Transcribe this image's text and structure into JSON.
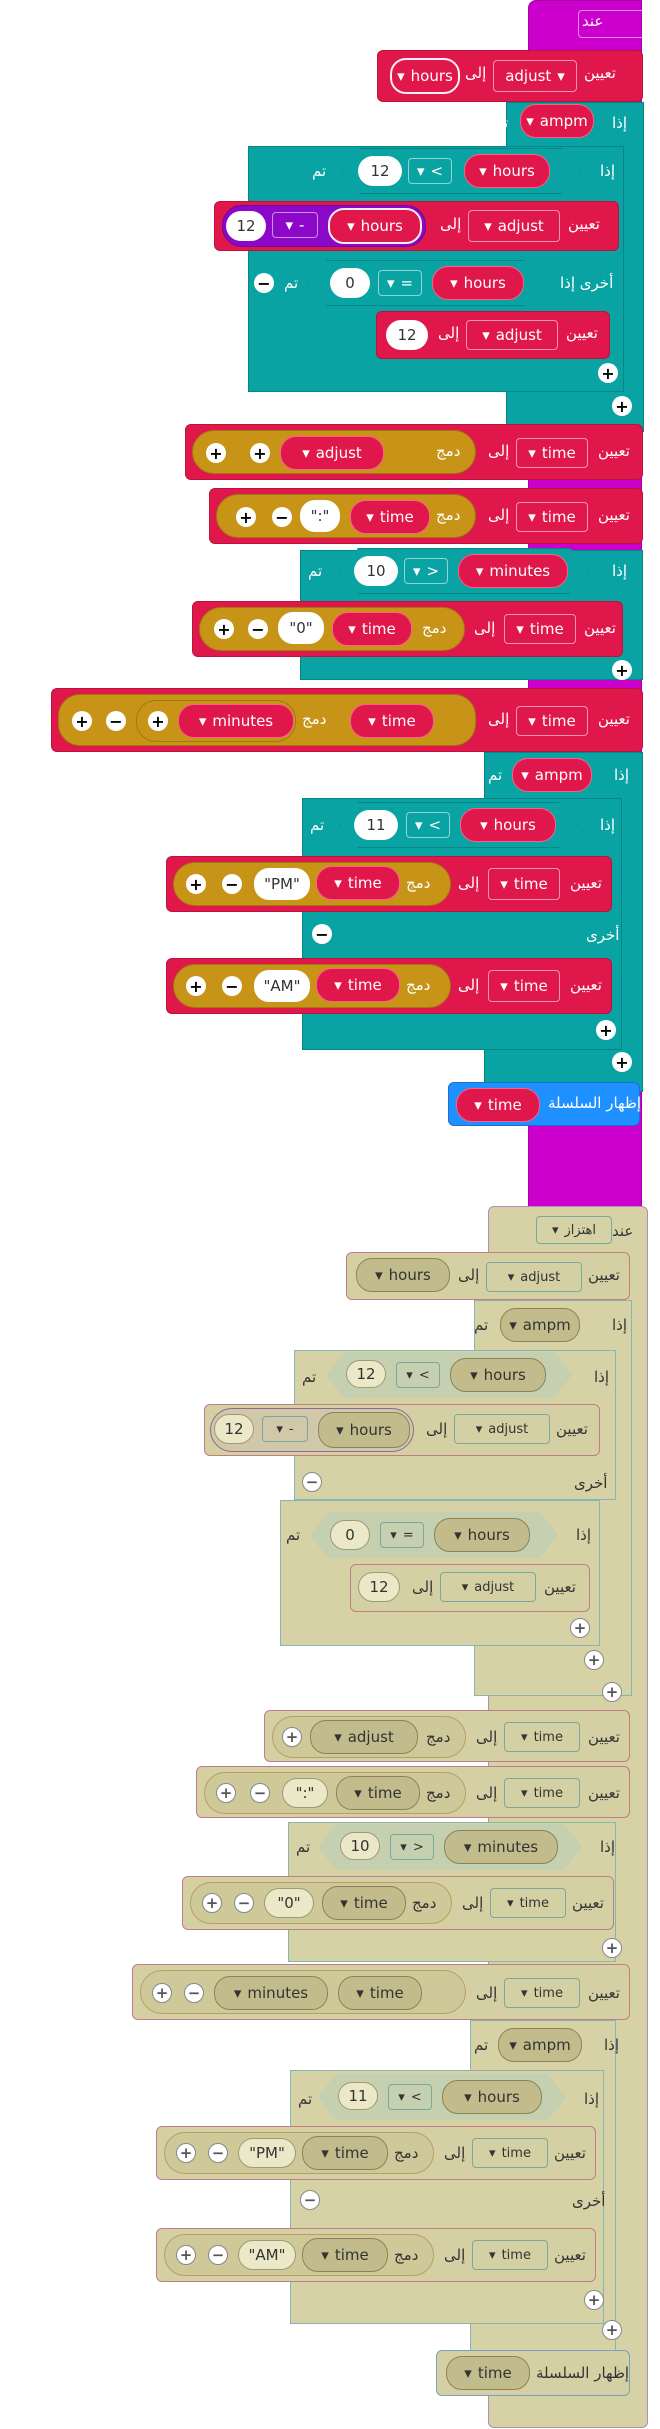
{
  "labels": {
    "on": "عند",
    "shake": "اهتزاز",
    "set": "تعيين",
    "to": "إلى",
    "if": "إذا",
    "then": "تم",
    "else": "أخرى",
    "else_if": "أخرى إذا",
    "join": "دمج",
    "show_string": "إظهار السلسلة"
  },
  "vars": {
    "hours": "hours",
    "adjust": "adjust",
    "ampm": "ampm",
    "time": "time",
    "minutes": "minutes"
  },
  "ops": {
    "lt": "<",
    "gt": ">",
    "eq": "=",
    "minus": "-"
  },
  "values": {
    "twelve": "12",
    "zero": "0",
    "ten": "10",
    "eleven": "11",
    "colon": "\":\"",
    "zero_str": "\"0\"",
    "pm": "\"PM\"",
    "am": "\"AM\""
  },
  "icons": {
    "dropdown": "▾",
    "plus": "+",
    "minus": "−"
  },
  "colors": {
    "event": "#cc00cc",
    "logic": "#0aa3a3",
    "variables": "#e0174a",
    "text": "#c79418",
    "math": "#8b08c8",
    "basic": "#1e90ff"
  }
}
